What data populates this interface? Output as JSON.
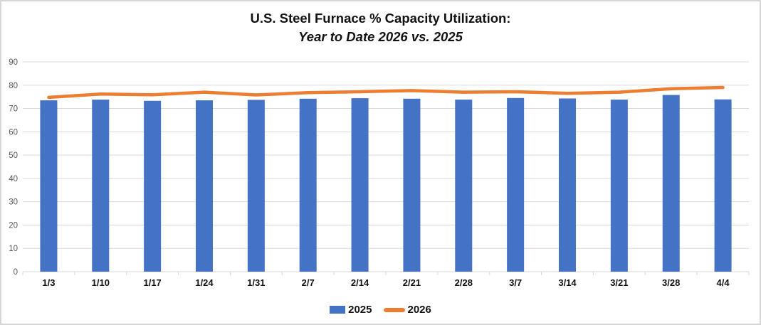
{
  "title": {
    "line1": "U.S. Steel Furnace % Capacity Utilization:",
    "line2": "Year to Date 2026 vs. 2025"
  },
  "colors": {
    "bar_2025": "#4472C4",
    "line_2026": "#ED7D31",
    "gridline": "#D9D9D9",
    "axis_tick_text": "#595959",
    "category_text": "#121212",
    "frame_border": "#D6D6D6",
    "background": "#FFFFFF"
  },
  "chart_data": {
    "type": "bar",
    "subtype": "bar-with-line-overlay",
    "title": "U.S. Steel Furnace % Capacity Utilization: Year to Date 2026 vs. 2025",
    "xlabel": "",
    "ylabel": "",
    "ylim": [
      0,
      90
    ],
    "yticks": [
      0,
      10,
      20,
      30,
      40,
      50,
      60,
      70,
      80,
      90
    ],
    "grid": "horizontal",
    "legend_position": "bottom",
    "categories": [
      "1/3",
      "1/10",
      "1/17",
      "1/24",
      "1/31",
      "2/7",
      "2/14",
      "2/21",
      "2/28",
      "3/7",
      "3/14",
      "3/21",
      "3/28",
      "4/4"
    ],
    "series": [
      {
        "name": "2025",
        "type": "bar",
        "color": "#4472C4",
        "values": [
          73.5,
          73.8,
          73.3,
          73.5,
          73.7,
          74.2,
          74.4,
          74.2,
          73.8,
          74.5,
          74.3,
          73.8,
          75.8,
          73.9
        ]
      },
      {
        "name": "2026",
        "type": "line",
        "color": "#ED7D31",
        "values": [
          74.8,
          76.2,
          75.9,
          77.0,
          75.8,
          76.8,
          77.2,
          77.7,
          77.0,
          77.2,
          76.5,
          77.0,
          78.5,
          79.0
        ]
      }
    ]
  }
}
